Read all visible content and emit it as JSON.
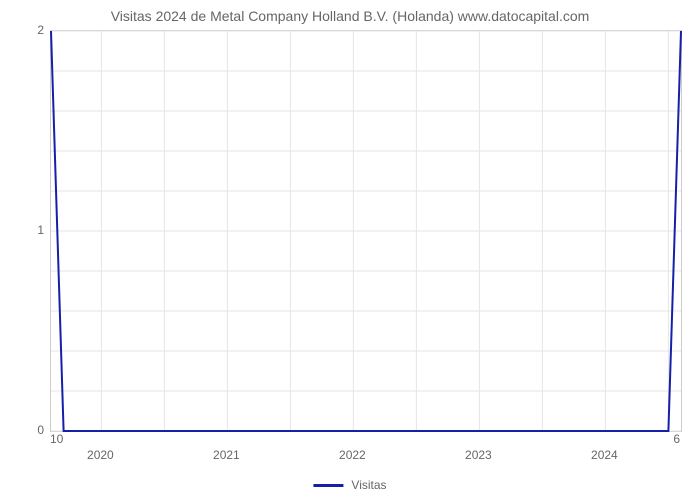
{
  "chart": {
    "type": "line",
    "title": "Visitas 2024 de Metal Company Holland B.V. (Holanda) www.datocapital.com",
    "title_fontsize": 14,
    "title_color": "#666666",
    "background_color": "#ffffff",
    "plot_border_color": "#cccccc",
    "grid_color": "#e5e5e5",
    "line_color": "#1520a6",
    "line_width": 2,
    "xlim": [
      2019.6,
      2024.6
    ],
    "ylim": [
      0,
      2
    ],
    "y_ticks": [
      0,
      1,
      2
    ],
    "y_minor_gridlines": 4,
    "x_ticks": [
      2020,
      2021,
      2022,
      2023,
      2024
    ],
    "x_gridlines_per_year": 2,
    "extra_label_bottom_left": "10",
    "extra_label_bottom_right": "6",
    "series": {
      "label": "Visitas",
      "points": [
        {
          "x": 2019.6,
          "y": 2.0
        },
        {
          "x": 2019.7,
          "y": 0.0
        },
        {
          "x": 2024.5,
          "y": 0.0
        },
        {
          "x": 2024.6,
          "y": 2.0
        }
      ]
    },
    "label_fontsize": 12,
    "label_color": "#666666"
  }
}
